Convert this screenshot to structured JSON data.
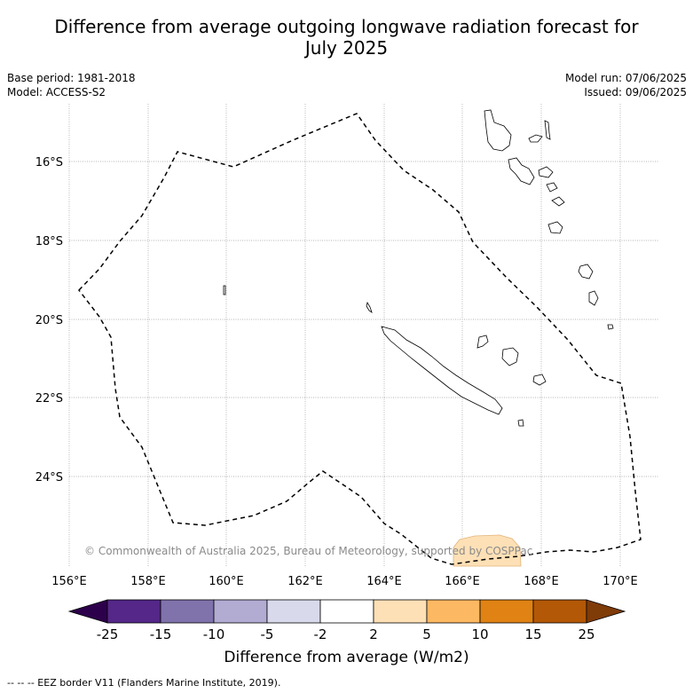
{
  "title_line1": "Difference from average outgoing longwave radiation forecast for",
  "title_line2": "July 2025",
  "meta_left": {
    "base_period": "Base period: 1981-2018",
    "model": "Model: ACCESS-S2"
  },
  "meta_right": {
    "model_run": "Model run: 07/06/2025",
    "issued": "Issued: 09/06/2025"
  },
  "map": {
    "lon_ticks": [
      "156°E",
      "158°E",
      "160°E",
      "162°E",
      "164°E",
      "166°E",
      "168°E",
      "170°E"
    ],
    "lat_ticks": [
      "16°S",
      "18°S",
      "20°S",
      "22°S",
      "24°S"
    ],
    "copyright": "© Commonwealth of Australia 2025, Bureau of Meteorology, supported by COSPPac",
    "anomaly_region_color": "#fee0b6"
  },
  "colorbar": {
    "title": "Difference from average (W/m2)",
    "labels": [
      "-25",
      "-15",
      "-10",
      "-5",
      "-2",
      "2",
      "5",
      "10",
      "15",
      "25"
    ],
    "colors": [
      "#2d004b",
      "#542788",
      "#8073ac",
      "#b2abd2",
      "#d8daeb",
      "#ffffff",
      "#fee0b6",
      "#fdb863",
      "#e08214",
      "#b35806",
      "#7f3b08"
    ]
  },
  "footnote": "--  --  -- EEZ border V11 (Flanders Marine Institute, 2019)."
}
